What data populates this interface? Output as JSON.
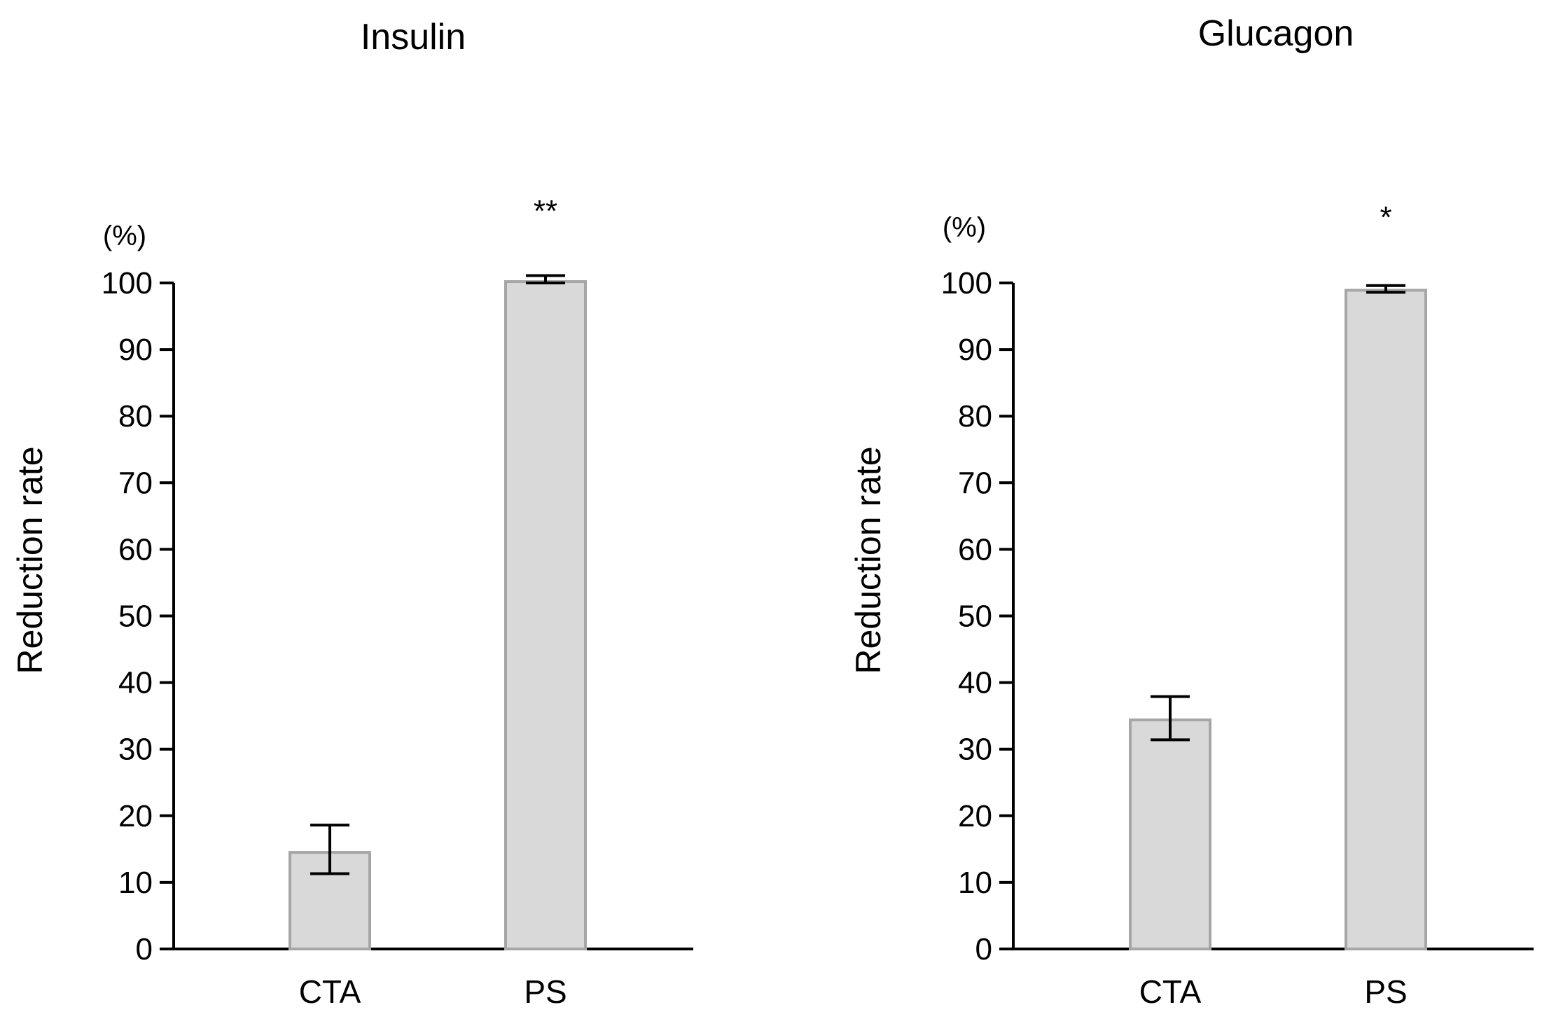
{
  "chart_data": [
    {
      "type": "bar",
      "title": "Insulin",
      "unit_label": "(%)",
      "ylabel": "Reduction rate",
      "xlabel": "",
      "ylim": [
        0,
        100
      ],
      "yticks": [
        0,
        10,
        20,
        30,
        40,
        50,
        60,
        70,
        80,
        90,
        100
      ],
      "ytick_labels": [
        "0",
        "10",
        "20",
        "30",
        "40",
        "50",
        "60",
        "70",
        "80",
        "90",
        "100"
      ],
      "categories": [
        "CTA",
        "PS"
      ],
      "values": [
        14.5,
        100.2
      ],
      "error_low": [
        11.3,
        100.0
      ],
      "error_high": [
        18.6,
        101.1
      ],
      "significance": [
        "",
        "**"
      ],
      "grid": false,
      "colors": {
        "bar_fill": "#d9d9d9",
        "bar_edge": "#a6a6a6",
        "axis": "#000000"
      }
    },
    {
      "type": "bar",
      "title": "Glucagon",
      "unit_label": "(%)",
      "ylabel": "Reduction rate",
      "xlabel": "",
      "ylim": [
        0,
        100
      ],
      "yticks": [
        0,
        10,
        20,
        30,
        40,
        50,
        60,
        70,
        80,
        90,
        100
      ],
      "ytick_labels": [
        "0",
        "10",
        "20",
        "30",
        "40",
        "50",
        "60",
        "70",
        "80",
        "90",
        "100"
      ],
      "categories": [
        "CTA",
        "PS"
      ],
      "values": [
        34.4,
        98.9
      ],
      "error_low": [
        31.4,
        98.6
      ],
      "error_high": [
        37.9,
        99.6
      ],
      "significance": [
        "",
        "*"
      ],
      "grid": false,
      "colors": {
        "bar_fill": "#d9d9d9",
        "bar_edge": "#a6a6a6",
        "axis": "#000000"
      }
    }
  ]
}
